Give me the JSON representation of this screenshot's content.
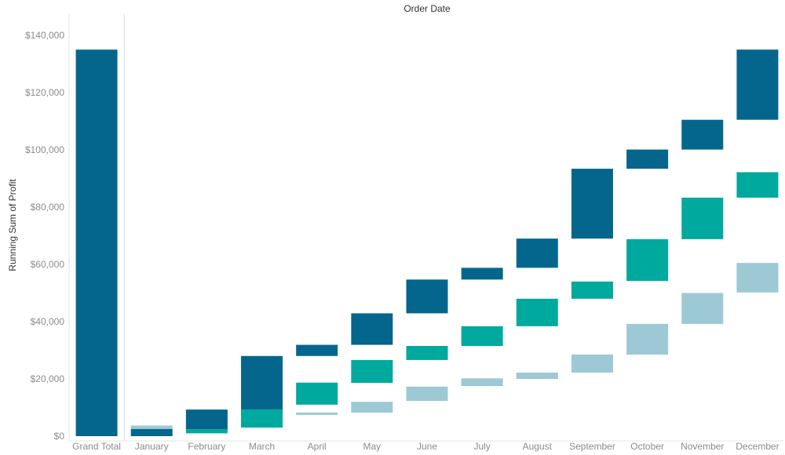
{
  "chart_data": {
    "type": "bar",
    "title": "Order Date",
    "ylabel": "Running Sum of Profit",
    "ylim": [
      0,
      140000
    ],
    "yticks": [
      0,
      20000,
      40000,
      60000,
      80000,
      100000,
      120000,
      140000
    ],
    "ytick_labels": [
      "$0",
      "$20,000",
      "$40,000",
      "$60,000",
      "$80,000",
      "$100,000",
      "$120,000",
      "$140,000"
    ],
    "grand_total": {
      "label": "Grand Total",
      "value": 135000,
      "color": "#05668d"
    },
    "categories": [
      "January",
      "February",
      "March",
      "April",
      "May",
      "June",
      "July",
      "August",
      "September",
      "October",
      "November",
      "December"
    ],
    "series": [
      {
        "color": "#9cc9d4",
        "segments": [
          [
            2500,
            3700
          ],
          [
            -1000,
            -1000
          ],
          [
            -1000,
            -1000
          ],
          [
            7500,
            8200
          ],
          [
            8200,
            12000
          ],
          [
            12300,
            17300
          ],
          [
            17500,
            20200
          ],
          [
            20000,
            22200
          ],
          [
            22200,
            28500
          ],
          [
            28500,
            39200
          ],
          [
            39200,
            50000
          ],
          [
            50200,
            60500
          ]
        ]
      },
      {
        "color": "#00a99d",
        "segments": [
          [
            -1000,
            -1000
          ],
          [
            1000,
            2400
          ],
          [
            3000,
            9300
          ],
          [
            11000,
            18700
          ],
          [
            18600,
            26600
          ],
          [
            26600,
            31500
          ],
          [
            31500,
            38400
          ],
          [
            38400,
            48000
          ],
          [
            48000,
            54000
          ],
          [
            54200,
            68800
          ],
          [
            68800,
            83300
          ],
          [
            83300,
            92200
          ]
        ]
      },
      {
        "color": "#05668d",
        "segments": [
          [
            0,
            2500
          ],
          [
            2400,
            9300
          ],
          [
            9300,
            28000
          ],
          [
            28000,
            31900
          ],
          [
            31900,
            42900
          ],
          [
            42900,
            54700
          ],
          [
            54700,
            58800
          ],
          [
            58800,
            69000
          ],
          [
            69000,
            93400
          ],
          [
            93400,
            100100
          ],
          [
            100100,
            110500
          ],
          [
            110500,
            135000
          ]
        ]
      }
    ]
  }
}
